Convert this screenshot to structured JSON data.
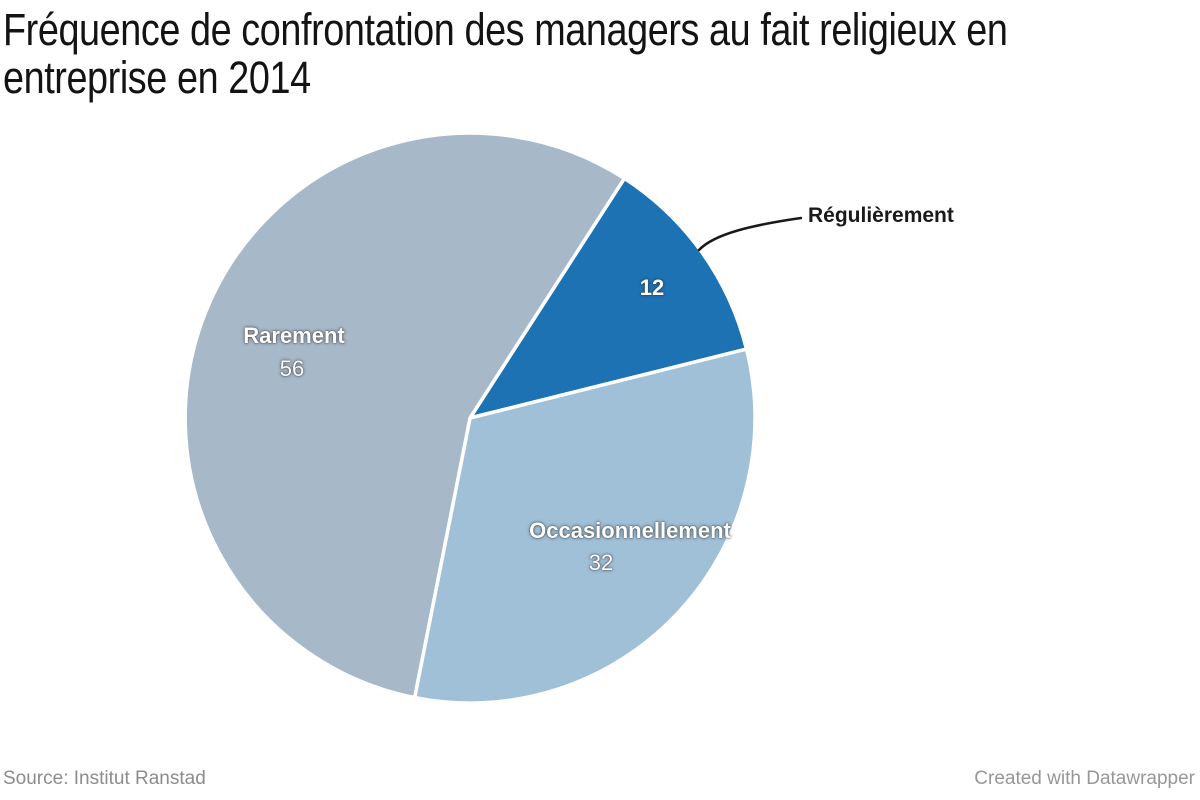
{
  "title_lines": [
    "Fréquence de confrontation des managers au fait religieux en",
    "entreprise en 2014"
  ],
  "chart_data": {
    "type": "pie",
    "title": "Fréquence de confrontation des managers au fait religieux en entreprise en 2014",
    "categories": [
      "Régulièrement",
      "Occasionnellement",
      "Rarement"
    ],
    "values": [
      12,
      32,
      56
    ],
    "total": 100,
    "direction": "clockwise",
    "start_angle_deg": 32.8,
    "legend_position": "none",
    "separator_color": "#ffffff",
    "slices": [
      {
        "name": "Régulièrement",
        "value": 12,
        "color": "#1d72b4",
        "label_placement": "outside-with-leader-line",
        "value_label_color": "#ffffff"
      },
      {
        "name": "Occasionnellement",
        "value": 32,
        "color": "#a0c0d8",
        "label_placement": "inside",
        "label_color": "#ffffff"
      },
      {
        "name": "Rarement",
        "value": 56,
        "color": "#a7b8c9",
        "label_placement": "inside",
        "label_color": "#ffffff"
      }
    ]
  },
  "footer": {
    "source": "Source: Institut Ranstad",
    "attribution": "Created with Datawrapper"
  }
}
